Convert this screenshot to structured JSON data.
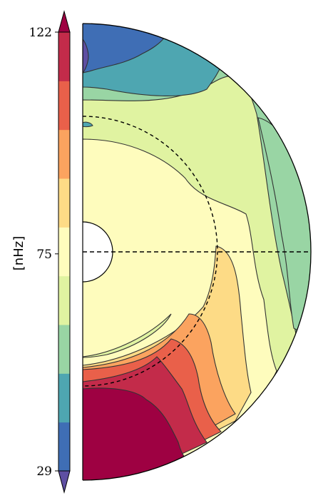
{
  "chart_data": {
    "type": "heatmap",
    "subtype": "meridional-half-disk-contour",
    "title": "",
    "colorbar": {
      "label": "[nHz]",
      "min": 29,
      "max": 122,
      "ticks": [
        122,
        75,
        29
      ],
      "tick_labels": [
        "122",
        "75",
        "29"
      ],
      "extend": "both",
      "levels": 9,
      "colors": [
        "#5e4fa2",
        "#3f6eb5",
        "#4ea6b1",
        "#99d5a4",
        "#e0f3a1",
        "#fefcbd",
        "#fddb86",
        "#fba35f",
        "#e9604a",
        "#c32b4a",
        "#9e0142"
      ]
    },
    "annotations": {
      "tachocline_radius_fraction": 0.7,
      "equator_line": true,
      "inner_core_cutout_fraction": 0.13
    }
  }
}
